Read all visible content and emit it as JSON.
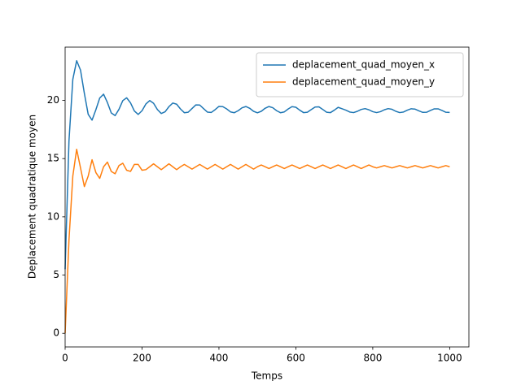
{
  "chart_data": {
    "type": "line",
    "xlabel": "Temps",
    "ylabel": "Deplacement quadratique moyen",
    "x": [
      0,
      10,
      20,
      30,
      40,
      50,
      60,
      70,
      80,
      90,
      100,
      110,
      120,
      130,
      140,
      150,
      160,
      170,
      180,
      190,
      200,
      210,
      220,
      230,
      240,
      250,
      260,
      270,
      280,
      290,
      300,
      310,
      320,
      330,
      340,
      350,
      360,
      370,
      380,
      390,
      400,
      410,
      420,
      430,
      440,
      450,
      460,
      470,
      480,
      490,
      500,
      510,
      520,
      530,
      540,
      550,
      560,
      570,
      580,
      590,
      600,
      610,
      620,
      630,
      640,
      650,
      660,
      670,
      680,
      690,
      700,
      710,
      720,
      730,
      740,
      750,
      760,
      770,
      780,
      790,
      800,
      810,
      820,
      830,
      840,
      850,
      860,
      870,
      880,
      890,
      900,
      910,
      920,
      930,
      940,
      950,
      960,
      970,
      980,
      990,
      1000
    ],
    "series": [
      {
        "name": "deplacement_quad_moyen_x",
        "color": "#1f77b4",
        "values": [
          5.5,
          16.5,
          21.8,
          23.4,
          22.6,
          20.6,
          18.8,
          18.3,
          19.2,
          20.2,
          20.53,
          19.81,
          18.92,
          18.69,
          19.23,
          19.98,
          20.22,
          19.79,
          19.09,
          18.79,
          19.11,
          19.69,
          19.98,
          19.75,
          19.21,
          18.87,
          19.02,
          19.46,
          19.77,
          19.67,
          19.26,
          18.94,
          18.98,
          19.3,
          19.61,
          19.6,
          19.29,
          18.99,
          18.96,
          19.2,
          19.48,
          19.46,
          19.27,
          19.01,
          18.94,
          19.11,
          19.36,
          19.47,
          19.32,
          19.06,
          18.93,
          19.06,
          19.32,
          19.47,
          19.37,
          19.11,
          18.94,
          19.01,
          19.26,
          19.46,
          19.41,
          19.16,
          18.95,
          18.98,
          19.21,
          19.43,
          19.44,
          19.22,
          18.98,
          18.95,
          19.16,
          19.4,
          19.28,
          19.16,
          19.0,
          18.95,
          19.06,
          19.22,
          19.29,
          19.19,
          19.03,
          18.95,
          19.03,
          19.19,
          19.29,
          19.23,
          19.06,
          18.95,
          19.0,
          19.16,
          19.28,
          19.25,
          19.1,
          18.97,
          18.98,
          19.13,
          19.27,
          19.27,
          19.13,
          18.98,
          18.96
        ]
      },
      {
        "name": "deplacement_quad_moyen_y",
        "color": "#ff7f0e",
        "values": [
          0,
          8,
          13.5,
          15.8,
          14.2,
          12.6,
          13.5,
          14.9,
          13.8,
          13.3,
          14.3,
          14.7,
          13.9,
          13.7,
          14.4,
          14.6,
          14.0,
          13.9,
          14.5,
          14.5,
          14.0,
          14.05,
          14.3,
          14.55,
          14.3,
          14.05,
          14.3,
          14.55,
          14.3,
          14.05,
          14.3,
          14.5,
          14.3,
          14.1,
          14.3,
          14.5,
          14.3,
          14.1,
          14.3,
          14.5,
          14.3,
          14.1,
          14.3,
          14.5,
          14.3,
          14.1,
          14.3,
          14.5,
          14.3,
          14.1,
          14.3,
          14.45,
          14.3,
          14.15,
          14.3,
          14.45,
          14.3,
          14.15,
          14.3,
          14.45,
          14.3,
          14.15,
          14.3,
          14.45,
          14.3,
          14.15,
          14.3,
          14.45,
          14.3,
          14.15,
          14.3,
          14.45,
          14.3,
          14.15,
          14.3,
          14.45,
          14.3,
          14.15,
          14.3,
          14.45,
          14.3,
          14.2,
          14.3,
          14.4,
          14.3,
          14.2,
          14.3,
          14.4,
          14.3,
          14.2,
          14.3,
          14.4,
          14.3,
          14.2,
          14.3,
          14.4,
          14.3,
          14.2,
          14.3,
          14.4,
          14.3
        ]
      }
    ],
    "xlim": [
      0,
      1050
    ],
    "xticks": [
      0,
      200,
      400,
      600,
      800,
      1000
    ],
    "ylim": [
      -1.17,
      24.57
    ],
    "yticks": [
      0,
      5,
      10,
      15,
      20
    ],
    "legend": "upper right",
    "grid": false
  }
}
